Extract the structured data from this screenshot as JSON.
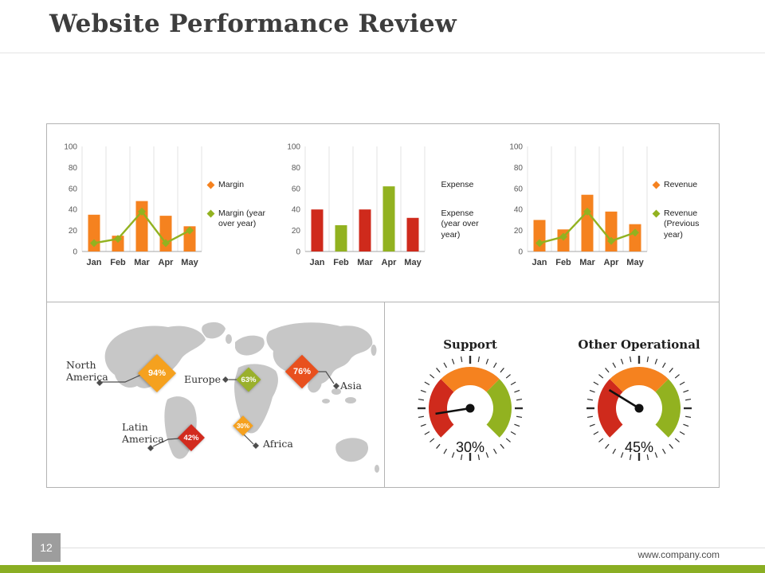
{
  "slide": {
    "title": "Website Performance Review",
    "page_number": "12",
    "footer_url": "www.company.com"
  },
  "theme": {
    "orange": "#f5821f",
    "green": "#92b220",
    "red": "#cf2a1c",
    "accent_bar": "#8aae23",
    "map_gray": "#c7c7c7"
  },
  "chart_data": [
    {
      "type": "bar+line",
      "categories": [
        "Jan",
        "Feb",
        "Mar",
        "Apr",
        "May"
      ],
      "ylim": [
        0,
        100
      ],
      "yticks": [
        0,
        20,
        40,
        60,
        80,
        100
      ],
      "grid": "vertical",
      "legend_position": "right",
      "series": [
        {
          "name": "Margin",
          "kind": "bar",
          "color": "#f5821f",
          "values": [
            35,
            15,
            48,
            34,
            24
          ]
        },
        {
          "name": "Margin (year over year)",
          "kind": "line",
          "color": "#92b220",
          "values": [
            8,
            12,
            38,
            8,
            20
          ]
        }
      ],
      "legend": [
        {
          "label": "Margin",
          "color": "#f5821f"
        },
        {
          "label": "Margin (year over year)",
          "color": "#92b220"
        }
      ]
    },
    {
      "type": "bar",
      "categories": [
        "Jan",
        "Feb",
        "Mar",
        "Apr",
        "May"
      ],
      "ylim": [
        0,
        100
      ],
      "yticks": [
        0,
        20,
        40,
        60,
        80,
        100
      ],
      "grid": "vertical",
      "legend_position": "right",
      "series": [
        {
          "name": "Expense",
          "kind": "bar",
          "colors": [
            "#cf2a1c",
            "#92b220",
            "#cf2a1c",
            "#92b220",
            "#cf2a1c"
          ],
          "values": [
            40,
            25,
            40,
            62,
            32
          ]
        }
      ],
      "legend": [
        {
          "label": "Expense",
          "color": null
        },
        {
          "label": "Expense (year over year)",
          "color": null
        }
      ]
    },
    {
      "type": "bar+line",
      "categories": [
        "Jan",
        "Feb",
        "Mar",
        "Apr",
        "May"
      ],
      "ylim": [
        0,
        100
      ],
      "yticks": [
        0,
        20,
        40,
        60,
        80,
        100
      ],
      "grid": "vertical",
      "legend_position": "right",
      "series": [
        {
          "name": "Revenue",
          "kind": "bar",
          "color": "#f5821f",
          "values": [
            30,
            21,
            54,
            38,
            26
          ]
        },
        {
          "name": "Revenue (Previous year)",
          "kind": "line",
          "color": "#92b220",
          "values": [
            8,
            14,
            38,
            10,
            18
          ]
        }
      ],
      "legend": [
        {
          "label": "Revenue",
          "color": "#f5821f"
        },
        {
          "label": "Revenue (Previous year)",
          "color": "#92b220"
        }
      ]
    }
  ],
  "map": {
    "regions": [
      {
        "label": "North America",
        "value": "94%",
        "color": "#f5a11f"
      },
      {
        "label": "Europe",
        "value": "63%",
        "color": "#9ab02c"
      },
      {
        "label": "Asia",
        "value": "76%",
        "color": "#e8501e"
      },
      {
        "label": "Latin America",
        "value": "42%",
        "color": "#d22b1e"
      },
      {
        "label": "Africa",
        "value": "30%",
        "color": "#f5a11f"
      }
    ]
  },
  "gauges": [
    {
      "title": "Support",
      "value": "30%",
      "percent": 30
    },
    {
      "title": "Other Operational",
      "value": "45%",
      "percent": 45
    }
  ]
}
